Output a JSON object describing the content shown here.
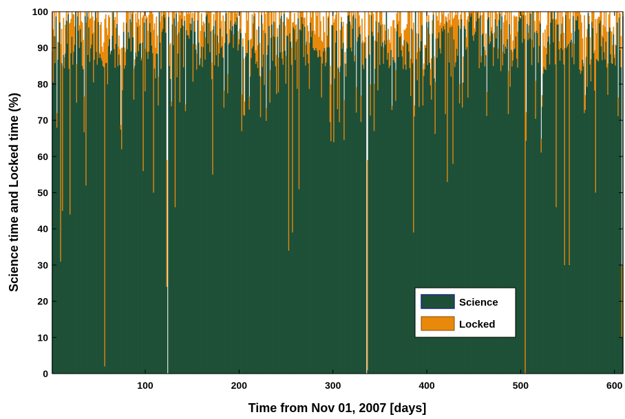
{
  "chart_data": {
    "type": "bar",
    "stacked": true,
    "xlabel": "Time from Nov 01, 2007 [days]",
    "ylabel": "Science time and Locked time (%)",
    "xlim": [
      1,
      609
    ],
    "ylim": [
      0,
      100
    ],
    "xticks": [
      100,
      200,
      300,
      400,
      500,
      600
    ],
    "yticks": [
      0,
      10,
      20,
      30,
      40,
      50,
      60,
      70,
      80,
      90,
      100
    ],
    "grid": false,
    "legend_position": "lower-right",
    "series": [
      {
        "name": "Science",
        "color": "#1e5038",
        "baseline": 92,
        "spread": 8
      },
      {
        "name": "Locked",
        "color": "#e8890c",
        "baseline": 6,
        "spread": 6
      }
    ],
    "notable_days": [
      {
        "day": 6,
        "science": 68,
        "locked": 4
      },
      {
        "day": 10,
        "science": 31,
        "locked": 60
      },
      {
        "day": 12,
        "science": 45,
        "locked": 40
      },
      {
        "day": 20,
        "science": 44,
        "locked": 53
      },
      {
        "day": 33,
        "science": 85,
        "locked": 12
      },
      {
        "day": 37,
        "science": 52,
        "locked": 45
      },
      {
        "day": 57,
        "science": 2,
        "locked": 96
      },
      {
        "day": 75,
        "science": 62,
        "locked": 28
      },
      {
        "day": 98,
        "science": 56,
        "locked": 43
      },
      {
        "day": 109,
        "science": 50,
        "locked": 45
      },
      {
        "day": 123,
        "science": 24,
        "locked": 35
      },
      {
        "day": 124,
        "science": 0,
        "locked": 0
      },
      {
        "day": 132,
        "science": 46,
        "locked": 50
      },
      {
        "day": 137,
        "science": 75,
        "locked": 24
      },
      {
        "day": 172,
        "science": 55,
        "locked": 40
      },
      {
        "day": 253,
        "science": 34,
        "locked": 64
      },
      {
        "day": 257,
        "science": 39,
        "locked": 58
      },
      {
        "day": 264,
        "science": 51,
        "locked": 44
      },
      {
        "day": 301,
        "science": 64,
        "locked": 33
      },
      {
        "day": 336,
        "science": 0,
        "locked": 0
      },
      {
        "day": 337,
        "science": 1,
        "locked": 58
      },
      {
        "day": 386,
        "science": 39,
        "locked": 58
      },
      {
        "day": 422,
        "science": 53,
        "locked": 44
      },
      {
        "day": 428,
        "science": 58,
        "locked": 40
      },
      {
        "day": 505,
        "science": 0,
        "locked": 99
      },
      {
        "day": 538,
        "science": 46,
        "locked": 52
      },
      {
        "day": 547,
        "science": 30,
        "locked": 60
      },
      {
        "day": 552,
        "science": 30,
        "locked": 68
      },
      {
        "day": 568,
        "science": 72,
        "locked": 27
      },
      {
        "day": 580,
        "science": 50,
        "locked": 48
      },
      {
        "day": 608,
        "science": 10,
        "locked": 20
      }
    ]
  }
}
